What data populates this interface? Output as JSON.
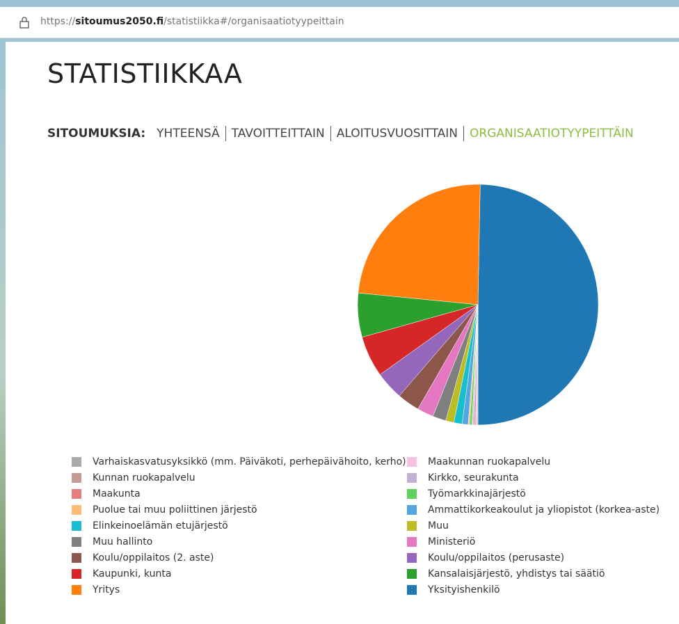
{
  "address": {
    "scheme": "https://",
    "host": "sitoumus2050.fi",
    "path": "/statistiikka#/organisaatiotyypeittain"
  },
  "page": {
    "title": "STATISTIIKKAA",
    "nav": {
      "label": "SITOUMUKSIA:",
      "items": [
        "YHTEENSÄ",
        "TAVOITTEITTAIN",
        "ALOITUSVUOSITTAIN",
        "ORGANISAATIOTYYPEITTÄIN"
      ]
    }
  },
  "chart_data": {
    "type": "pie",
    "categories": [
      "Yksityishenkilö",
      "Yritys",
      "Kansalaisjärjestö, yhdistys tai säätiö",
      "Kaupunki, kunta",
      "Koulu/oppilaitos (perusaste)",
      "Koulu/oppilaitos (2. aste)",
      "Ministeriö",
      "Muu hallinto",
      "Muu",
      "Elinkeinoelämän etujärjestö",
      "Ammattikorkeakoulut ja yliopistot (korkea-aste)",
      "Puolue tai muu poliittinen järjestö",
      "Työmarkkinajärjestö",
      "Maakunta",
      "Kirkko, seurakunta",
      "Kunnan ruokapalvelu",
      "Maakunnan ruokapalvelu",
      "Varhaiskasvatusyksikkö (mm. Päiväkoti, perhepäivähoito, kerho)"
    ],
    "values": [
      49.6,
      23.7,
      5.9,
      5.5,
      3.8,
      3.0,
      2.2,
      1.8,
      1.1,
      1.1,
      0.8,
      0.2,
      0.3,
      0.1,
      0.2,
      0.2,
      0.2,
      0.1
    ],
    "colors": [
      "#1f77b4",
      "#ff7f0e",
      "#2ca02c",
      "#d62728",
      "#9467bd",
      "#8c564b",
      "#e377c2",
      "#7f7f7f",
      "#bcbd22",
      "#17becf",
      "#55a6e0",
      "#ffbb78",
      "#5cd35c",
      "#e87d7d",
      "#c5b0d5",
      "#c49c94",
      "#f7c0dc",
      "#aaaaaa"
    ]
  }
}
